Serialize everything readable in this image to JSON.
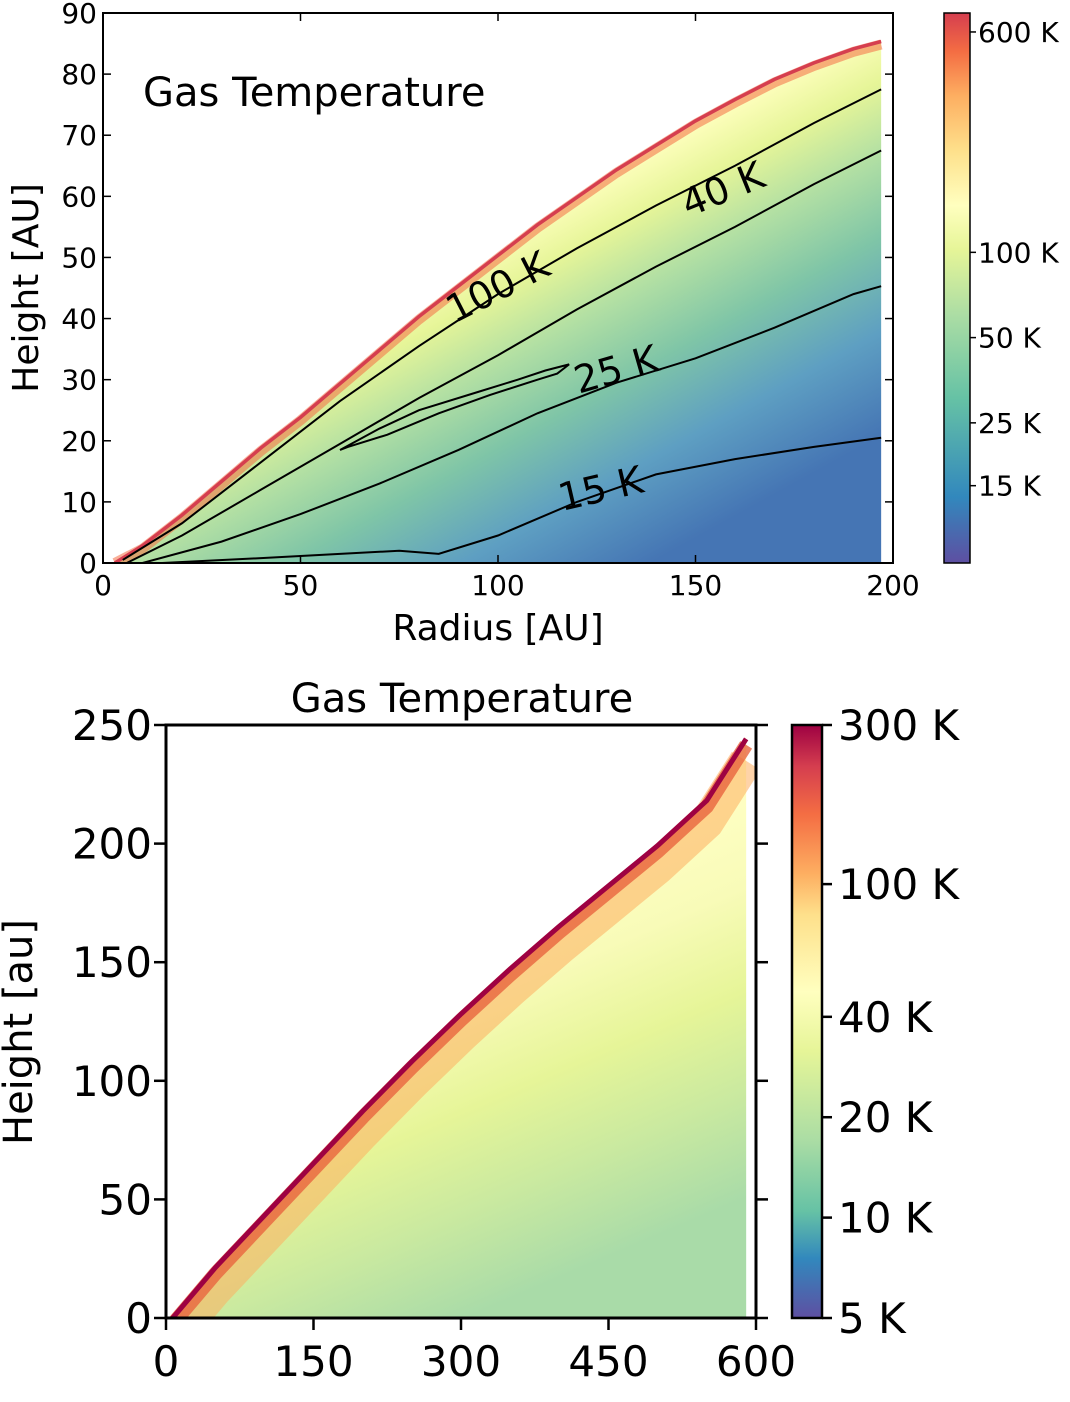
{
  "chart_data": [
    {
      "type": "heatmap",
      "annotation": "Gas Temperature",
      "xlabel": "Radius [AU]",
      "ylabel": "Height [AU]",
      "xlim": [
        0,
        200
      ],
      "ylim": [
        0,
        90
      ],
      "xticks": [
        "0",
        "50",
        "100",
        "150",
        "200"
      ],
      "yticks": [
        "0",
        "10",
        "20",
        "30",
        "40",
        "50",
        "60",
        "70",
        "80",
        "90"
      ],
      "colorbar": {
        "scale": "log",
        "range_K": [
          8,
          700
        ],
        "ticks": [
          {
            "value": 600,
            "label": "600 K"
          },
          {
            "value": 100,
            "label": "100 K"
          },
          {
            "value": 50,
            "label": "50 K"
          },
          {
            "value": 25,
            "label": "25 K"
          },
          {
            "value": 15,
            "label": "15 K"
          }
        ]
      },
      "surface_height": {
        "r": [
          3,
          10,
          20,
          30,
          40,
          50,
          60,
          70,
          80,
          90,
          100,
          110,
          120,
          130,
          140,
          150,
          160,
          170,
          180,
          190,
          197
        ],
        "z": [
          0,
          3,
          8,
          13.5,
          19,
          24,
          29.5,
          35,
          40.5,
          45.5,
          50.5,
          55.5,
          60,
          64.5,
          68.5,
          72.5,
          76,
          79.3,
          82,
          84.3,
          85.5
        ]
      },
      "contours": [
        {
          "label": "100 K",
          "r": [
            5,
            20,
            40,
            60,
            80,
            100,
            120,
            140,
            160,
            180,
            197
          ],
          "z": [
            0.5,
            6.5,
            16.5,
            26.5,
            35.5,
            44,
            51.5,
            58.5,
            65,
            72,
            77.5
          ]
        },
        {
          "label": "40 K",
          "r": [
            6,
            20,
            40,
            60,
            80,
            100,
            120,
            140,
            160,
            180,
            197
          ],
          "z": [
            0,
            4.5,
            12,
            19.5,
            27,
            34,
            41.5,
            48.5,
            55,
            62,
            67.5
          ]
        },
        {
          "label": "25 K",
          "r": [
            10,
            30,
            50,
            70,
            90,
            110,
            130,
            150,
            170,
            190,
            197
          ],
          "z": [
            0,
            3.5,
            8,
            13,
            18.5,
            24.5,
            29.5,
            33.5,
            38.5,
            44,
            45.3
          ]
        },
        {
          "label": "15 K",
          "r": [
            15,
            40,
            60,
            75,
            85,
            100,
            120,
            140,
            160,
            180,
            197
          ],
          "z": [
            0,
            0.8,
            1.5,
            2,
            1.5,
            4.5,
            10,
            14.5,
            17,
            19,
            20.5
          ]
        }
      ],
      "closed_contour": {
        "r": [
          60,
          70,
          80,
          95,
          105,
          112,
          118,
          115,
          110,
          98,
          85,
          72,
          62,
          60
        ],
        "z": [
          18.5,
          22,
          25,
          28,
          30,
          31.5,
          32.5,
          31,
          30,
          27.5,
          24.5,
          21,
          19,
          18.5
        ]
      }
    },
    {
      "type": "heatmap",
      "title": "Gas Temperature",
      "xlabel": "",
      "ylabel": "Height [au]",
      "xlim": [
        0,
        600
      ],
      "ylim": [
        0,
        250
      ],
      "xticks": [
        "0",
        "150",
        "300",
        "450",
        "600"
      ],
      "yticks": [
        "0",
        "50",
        "100",
        "150",
        "200",
        "250"
      ],
      "colorbar": {
        "scale": "log",
        "range_K": [
          5,
          300
        ],
        "ticks": [
          {
            "value": 300,
            "label": "300 K"
          },
          {
            "value": 100,
            "label": "100 K"
          },
          {
            "value": 40,
            "label": "40 K"
          },
          {
            "value": 20,
            "label": "20 K"
          },
          {
            "value": 10,
            "label": "10 K"
          },
          {
            "value": 5,
            "label": "5 K"
          }
        ]
      },
      "surface_height": {
        "r": [
          5,
          50,
          100,
          150,
          200,
          250,
          300,
          350,
          400,
          450,
          500,
          550,
          590
        ],
        "z": [
          0,
          22,
          44,
          66,
          88,
          109,
          129,
          148,
          166,
          183,
          200,
          219,
          245
        ]
      }
    }
  ],
  "colors": {
    "spectral": [
      "#5e4fa2",
      "#3288bd",
      "#66c2a5",
      "#abdda4",
      "#e6f598",
      "#ffffbf",
      "#fee08b",
      "#fdae61",
      "#f46d43",
      "#d53e4f",
      "#9e0142"
    ]
  }
}
